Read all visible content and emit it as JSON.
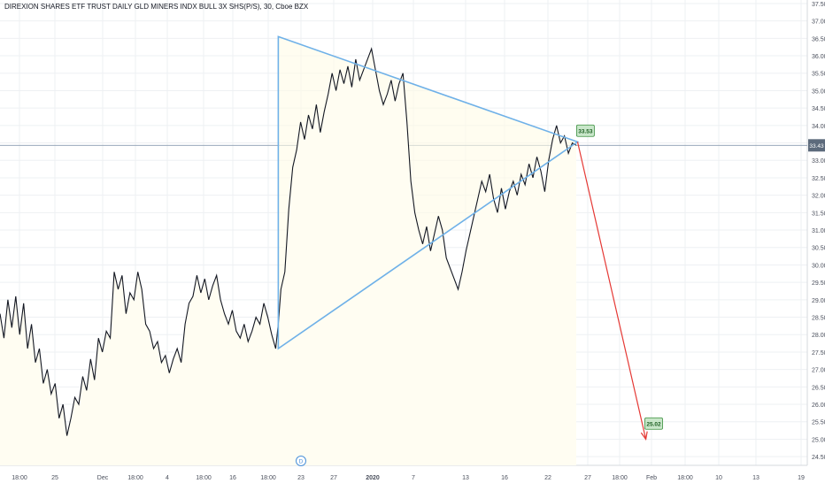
{
  "chart_data": {
    "type": "line",
    "title": "DIREXION SHARES ETF TRUST DAILY GLD MINERS INDX BULL 3X SHS(P/S), 30, Cboe BZX",
    "ylim": [
      24.25,
      37.6
    ],
    "yticks": [
      "24.50",
      "25.00",
      "25.50",
      "26.00",
      "26.50",
      "27.00",
      "27.50",
      "28.00",
      "28.50",
      "29.00",
      "29.50",
      "30.00",
      "30.50",
      "31.00",
      "31.50",
      "32.00",
      "32.50",
      "33.00",
      "33.50",
      "34.00",
      "34.50",
      "35.00",
      "35.50",
      "36.00",
      "36.50",
      "37.00",
      "37.50"
    ],
    "xticks": [
      "18:00",
      "25",
      "Dec",
      "18:00",
      "4",
      "18:00",
      "16",
      "18:00",
      "23",
      "27",
      "2020",
      "7",
      "13",
      "16",
      "22",
      "27",
      "18:00",
      "Feb",
      "18:00",
      "10",
      "13",
      "19"
    ],
    "current_price_label": "33.43",
    "event_marker_label": "D",
    "price_series": [
      {
        "t": 0,
        "y": 28.6
      },
      {
        "t": 0.3,
        "y": 27.9
      },
      {
        "t": 0.6,
        "y": 29.0
      },
      {
        "t": 0.9,
        "y": 28.2
      },
      {
        "t": 1.2,
        "y": 29.1
      },
      {
        "t": 1.5,
        "y": 28.0
      },
      {
        "t": 1.8,
        "y": 28.9
      },
      {
        "t": 2.1,
        "y": 27.6
      },
      {
        "t": 2.4,
        "y": 28.3
      },
      {
        "t": 2.7,
        "y": 27.2
      },
      {
        "t": 3.0,
        "y": 27.6
      },
      {
        "t": 3.3,
        "y": 26.6
      },
      {
        "t": 3.6,
        "y": 27.0
      },
      {
        "t": 3.9,
        "y": 26.3
      },
      {
        "t": 4.2,
        "y": 26.6
      },
      {
        "t": 4.5,
        "y": 25.6
      },
      {
        "t": 4.8,
        "y": 26.0
      },
      {
        "t": 5.1,
        "y": 25.1
      },
      {
        "t": 5.4,
        "y": 25.6
      },
      {
        "t": 5.7,
        "y": 26.2
      },
      {
        "t": 6.0,
        "y": 26.0
      },
      {
        "t": 6.3,
        "y": 26.8
      },
      {
        "t": 6.6,
        "y": 26.4
      },
      {
        "t": 6.9,
        "y": 27.3
      },
      {
        "t": 7.2,
        "y": 26.7
      },
      {
        "t": 7.5,
        "y": 27.9
      },
      {
        "t": 7.8,
        "y": 27.5
      },
      {
        "t": 8.1,
        "y": 28.1
      },
      {
        "t": 8.4,
        "y": 27.9
      },
      {
        "t": 8.7,
        "y": 29.8
      },
      {
        "t": 9.0,
        "y": 29.3
      },
      {
        "t": 9.3,
        "y": 29.7
      },
      {
        "t": 9.6,
        "y": 28.6
      },
      {
        "t": 9.9,
        "y": 29.2
      },
      {
        "t": 10.2,
        "y": 29.0
      },
      {
        "t": 10.5,
        "y": 29.8
      },
      {
        "t": 10.8,
        "y": 29.3
      },
      {
        "t": 11.1,
        "y": 28.3
      },
      {
        "t": 11.4,
        "y": 28.1
      },
      {
        "t": 11.7,
        "y": 27.6
      },
      {
        "t": 12.0,
        "y": 27.8
      },
      {
        "t": 12.3,
        "y": 27.2
      },
      {
        "t": 12.6,
        "y": 27.4
      },
      {
        "t": 12.9,
        "y": 26.9
      },
      {
        "t": 13.2,
        "y": 27.3
      },
      {
        "t": 13.5,
        "y": 27.6
      },
      {
        "t": 13.8,
        "y": 27.2
      },
      {
        "t": 14.1,
        "y": 28.3
      },
      {
        "t": 14.4,
        "y": 28.9
      },
      {
        "t": 14.7,
        "y": 29.1
      },
      {
        "t": 15.0,
        "y": 29.7
      },
      {
        "t": 15.3,
        "y": 29.2
      },
      {
        "t": 15.6,
        "y": 29.6
      },
      {
        "t": 15.9,
        "y": 29.0
      },
      {
        "t": 16.2,
        "y": 29.4
      },
      {
        "t": 16.5,
        "y": 29.7
      },
      {
        "t": 16.8,
        "y": 29.0
      },
      {
        "t": 17.1,
        "y": 28.6
      },
      {
        "t": 17.4,
        "y": 28.3
      },
      {
        "t": 17.7,
        "y": 28.7
      },
      {
        "t": 18.0,
        "y": 28.1
      },
      {
        "t": 18.3,
        "y": 27.9
      },
      {
        "t": 18.6,
        "y": 28.3
      },
      {
        "t": 18.9,
        "y": 27.8
      },
      {
        "t": 19.2,
        "y": 28.1
      },
      {
        "t": 19.5,
        "y": 28.5
      },
      {
        "t": 19.8,
        "y": 28.3
      },
      {
        "t": 20.1,
        "y": 28.9
      },
      {
        "t": 20.4,
        "y": 28.5
      },
      {
        "t": 20.7,
        "y": 28.0
      },
      {
        "t": 21.0,
        "y": 27.6
      },
      {
        "t": 21.2,
        "y": 28.3
      },
      {
        "t": 21.4,
        "y": 29.3
      },
      {
        "t": 21.7,
        "y": 29.8
      },
      {
        "t": 22.0,
        "y": 31.6
      },
      {
        "t": 22.3,
        "y": 32.8
      },
      {
        "t": 22.6,
        "y": 33.3
      },
      {
        "t": 22.9,
        "y": 34.1
      },
      {
        "t": 23.2,
        "y": 33.6
      },
      {
        "t": 23.5,
        "y": 34.3
      },
      {
        "t": 23.8,
        "y": 33.9
      },
      {
        "t": 24.1,
        "y": 34.6
      },
      {
        "t": 24.4,
        "y": 33.8
      },
      {
        "t": 24.7,
        "y": 34.4
      },
      {
        "t": 25.0,
        "y": 34.9
      },
      {
        "t": 25.3,
        "y": 35.5
      },
      {
        "t": 25.6,
        "y": 35.0
      },
      {
        "t": 25.9,
        "y": 35.6
      },
      {
        "t": 26.2,
        "y": 35.2
      },
      {
        "t": 26.5,
        "y": 35.7
      },
      {
        "t": 26.8,
        "y": 35.1
      },
      {
        "t": 27.1,
        "y": 35.9
      },
      {
        "t": 27.4,
        "y": 35.3
      },
      {
        "t": 27.7,
        "y": 35.6
      },
      {
        "t": 28.0,
        "y": 35.9
      },
      {
        "t": 28.3,
        "y": 36.2
      },
      {
        "t": 28.6,
        "y": 35.6
      },
      {
        "t": 28.9,
        "y": 35.0
      },
      {
        "t": 29.2,
        "y": 34.6
      },
      {
        "t": 29.5,
        "y": 34.9
      },
      {
        "t": 29.8,
        "y": 35.3
      },
      {
        "t": 30.1,
        "y": 34.7
      },
      {
        "t": 30.4,
        "y": 35.2
      },
      {
        "t": 30.7,
        "y": 35.5
      },
      {
        "t": 31.0,
        "y": 34.1
      },
      {
        "t": 31.3,
        "y": 32.4
      },
      {
        "t": 31.6,
        "y": 31.5
      },
      {
        "t": 31.9,
        "y": 31.0
      },
      {
        "t": 32.2,
        "y": 30.6
      },
      {
        "t": 32.5,
        "y": 31.1
      },
      {
        "t": 32.8,
        "y": 30.4
      },
      {
        "t": 33.1,
        "y": 30.9
      },
      {
        "t": 33.4,
        "y": 31.4
      },
      {
        "t": 33.7,
        "y": 31.0
      },
      {
        "t": 34.0,
        "y": 30.2
      },
      {
        "t": 34.3,
        "y": 29.9
      },
      {
        "t": 34.6,
        "y": 29.6
      },
      {
        "t": 34.9,
        "y": 29.3
      },
      {
        "t": 35.2,
        "y": 29.8
      },
      {
        "t": 35.5,
        "y": 30.4
      },
      {
        "t": 35.8,
        "y": 30.9
      },
      {
        "t": 36.1,
        "y": 31.4
      },
      {
        "t": 36.4,
        "y": 31.9
      },
      {
        "t": 36.7,
        "y": 32.4
      },
      {
        "t": 37.0,
        "y": 32.1
      },
      {
        "t": 37.3,
        "y": 32.6
      },
      {
        "t": 37.6,
        "y": 31.9
      },
      {
        "t": 37.9,
        "y": 31.5
      },
      {
        "t": 38.2,
        "y": 32.2
      },
      {
        "t": 38.5,
        "y": 31.6
      },
      {
        "t": 38.8,
        "y": 32.1
      },
      {
        "t": 39.1,
        "y": 32.4
      },
      {
        "t": 39.4,
        "y": 32.0
      },
      {
        "t": 39.7,
        "y": 32.6
      },
      {
        "t": 40.0,
        "y": 32.3
      },
      {
        "t": 40.3,
        "y": 32.9
      },
      {
        "t": 40.6,
        "y": 32.5
      },
      {
        "t": 40.9,
        "y": 33.1
      },
      {
        "t": 41.2,
        "y": 32.7
      },
      {
        "t": 41.5,
        "y": 32.1
      },
      {
        "t": 41.8,
        "y": 33.0
      },
      {
        "t": 42.1,
        "y": 33.6
      },
      {
        "t": 42.4,
        "y": 34.0
      },
      {
        "t": 42.7,
        "y": 33.5
      },
      {
        "t": 43.0,
        "y": 33.7
      },
      {
        "t": 43.3,
        "y": 33.2
      },
      {
        "t": 43.6,
        "y": 33.5
      },
      {
        "t": 43.9,
        "y": 33.43
      }
    ],
    "triangle_drawing": {
      "points": [
        {
          "t": 21.2,
          "y": 36.55
        },
        {
          "t": 21.2,
          "y": 27.6
        },
        {
          "t": 44.0,
          "y": 33.53
        }
      ],
      "color": "#6fb1e8"
    },
    "projection_arrow": {
      "from": {
        "t": 44.0,
        "y": 33.53
      },
      "to": {
        "t": 49.2,
        "y": 25.0
      },
      "color": "#e53935"
    },
    "price_labels": [
      {
        "text": "33.53",
        "t": 44.6,
        "y": 33.85
      },
      {
        "text": "25.02",
        "t": 49.8,
        "y": 25.45
      }
    ],
    "colors": {
      "price_line": "#131722",
      "grid": "#eef0f3",
      "axis_text": "#4a4f5c",
      "label_fill": "#c8e6c9",
      "label_border": "#388e3c",
      "current_price_line": "#8a9bb0"
    }
  }
}
